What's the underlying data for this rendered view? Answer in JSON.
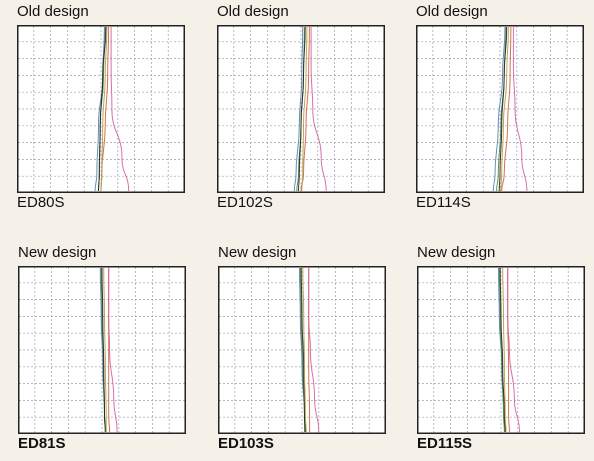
{
  "chart_data": [
    {
      "type": "line",
      "title": "Old design",
      "model": "ED80S",
      "series": [
        {
          "color": "#5a7fb0",
          "points": [
            [
              0.04,
              0
            ],
            [
              0.02,
              0.3
            ],
            [
              -0.03,
              0.6
            ],
            [
              -0.05,
              0.9
            ],
            [
              -0.07,
              1.0
            ]
          ]
        },
        {
          "color": "#4d8a4a",
          "points": [
            [
              0.05,
              0
            ],
            [
              0.03,
              0.3
            ],
            [
              -0.01,
              0.6
            ],
            [
              -0.02,
              0.9
            ],
            [
              -0.03,
              1.0
            ]
          ]
        },
        {
          "color": "#d06040",
          "points": [
            [
              0.09,
              0
            ],
            [
              0.08,
              0.3
            ],
            [
              0.05,
              0.6
            ],
            [
              0.01,
              0.9
            ],
            [
              0.0,
              1.0
            ]
          ]
        },
        {
          "color": "#d060a0",
          "points": [
            [
              0.12,
              0
            ],
            [
              0.12,
              0.25
            ],
            [
              0.13,
              0.5
            ],
            [
              0.25,
              0.8
            ],
            [
              0.33,
              1.0
            ]
          ]
        },
        {
          "color": "#222222",
          "points": [
            [
              0.06,
              0
            ],
            [
              0.02,
              0.3
            ],
            [
              -0.01,
              0.6
            ],
            [
              -0.02,
              0.9
            ],
            [
              -0.03,
              1.0
            ]
          ]
        },
        {
          "color": "#b0a040",
          "points": [
            [
              0.07,
              0
            ],
            [
              0.05,
              0.3
            ],
            [
              0.02,
              0.6
            ],
            [
              0.01,
              0.9
            ],
            [
              0.0,
              1.0
            ]
          ]
        }
      ]
    },
    {
      "type": "line",
      "title": "Old design",
      "model": "ED102S",
      "series": [
        {
          "color": "#5a7fb0",
          "points": [
            [
              0.02,
              0
            ],
            [
              0.01,
              0.3
            ],
            [
              -0.02,
              0.6
            ],
            [
              -0.06,
              0.9
            ],
            [
              -0.08,
              1.0
            ]
          ]
        },
        {
          "color": "#4d8a4a",
          "points": [
            [
              0.04,
              0
            ],
            [
              0.03,
              0.3
            ],
            [
              0.0,
              0.6
            ],
            [
              -0.03,
              0.9
            ],
            [
              -0.05,
              1.0
            ]
          ]
        },
        {
          "color": "#d06040",
          "points": [
            [
              0.1,
              0
            ],
            [
              0.09,
              0.3
            ],
            [
              0.06,
              0.6
            ],
            [
              0.03,
              0.9
            ],
            [
              0.0,
              1.0
            ]
          ]
        },
        {
          "color": "#d060a0",
          "points": [
            [
              0.12,
              0
            ],
            [
              0.12,
              0.25
            ],
            [
              0.14,
              0.5
            ],
            [
              0.24,
              0.8
            ],
            [
              0.3,
              1.0
            ]
          ]
        },
        {
          "color": "#222222",
          "points": [
            [
              0.05,
              0
            ],
            [
              0.03,
              0.3
            ],
            [
              0.0,
              0.6
            ],
            [
              -0.02,
              0.9
            ],
            [
              -0.03,
              1.0
            ]
          ]
        },
        {
          "color": "#b0a040",
          "points": [
            [
              0.07,
              0
            ],
            [
              0.06,
              0.3
            ],
            [
              0.03,
              0.6
            ],
            [
              0.02,
              0.9
            ],
            [
              0.01,
              1.0
            ]
          ]
        }
      ]
    },
    {
      "type": "line",
      "title": "Old design",
      "model": "ED114S",
      "series": [
        {
          "color": "#5a7fb0",
          "points": [
            [
              0.06,
              0
            ],
            [
              0.03,
              0.3
            ],
            [
              -0.02,
              0.6
            ],
            [
              -0.06,
              0.9
            ],
            [
              -0.08,
              1.0
            ]
          ]
        },
        {
          "color": "#4d8a4a",
          "points": [
            [
              0.07,
              0
            ],
            [
              0.05,
              0.3
            ],
            [
              0.01,
              0.6
            ],
            [
              -0.02,
              0.9
            ],
            [
              -0.04,
              1.0
            ]
          ]
        },
        {
          "color": "#d06040",
          "points": [
            [
              0.13,
              0
            ],
            [
              0.12,
              0.3
            ],
            [
              0.09,
              0.6
            ],
            [
              0.05,
              0.9
            ],
            [
              0.02,
              1.0
            ]
          ]
        },
        {
          "color": "#d060a0",
          "points": [
            [
              0.16,
              0
            ],
            [
              0.16,
              0.25
            ],
            [
              0.18,
              0.5
            ],
            [
              0.26,
              0.8
            ],
            [
              0.32,
              1.0
            ]
          ]
        },
        {
          "color": "#222222",
          "points": [
            [
              0.08,
              0
            ],
            [
              0.05,
              0.3
            ],
            [
              0.02,
              0.6
            ],
            [
              0.0,
              0.9
            ],
            [
              -0.01,
              1.0
            ]
          ]
        },
        {
          "color": "#b0a040",
          "points": [
            [
              0.1,
              0
            ],
            [
              0.08,
              0.3
            ],
            [
              0.04,
              0.6
            ],
            [
              0.02,
              0.9
            ],
            [
              0.01,
              1.0
            ]
          ]
        }
      ]
    },
    {
      "type": "line",
      "title": "New design",
      "model": "ED81S",
      "series": [
        {
          "color": "#5a7fb0",
          "points": [
            [
              -0.02,
              0
            ],
            [
              -0.01,
              0.3
            ],
            [
              0.01,
              0.6
            ],
            [
              0.03,
              0.9
            ],
            [
              0.04,
              1.0
            ]
          ]
        },
        {
          "color": "#4d8a4a",
          "points": [
            [
              -0.01,
              0
            ],
            [
              0.0,
              0.3
            ],
            [
              0.02,
              0.6
            ],
            [
              0.03,
              0.9
            ],
            [
              0.04,
              1.0
            ]
          ]
        },
        {
          "color": "#d06040",
          "points": [
            [
              0.08,
              0
            ],
            [
              0.08,
              0.3
            ],
            [
              0.08,
              0.6
            ],
            [
              0.08,
              0.9
            ],
            [
              0.09,
              1.0
            ]
          ]
        },
        {
          "color": "#d060a0",
          "points": [
            [
              0.08,
              0
            ],
            [
              0.08,
              0.3
            ],
            [
              0.09,
              0.5
            ],
            [
              0.14,
              0.8
            ],
            [
              0.18,
              1.0
            ]
          ]
        },
        {
          "color": "#222222",
          "points": [
            [
              0.0,
              0
            ],
            [
              0.01,
              0.3
            ],
            [
              0.02,
              0.6
            ],
            [
              0.03,
              0.9
            ],
            [
              0.04,
              1.0
            ]
          ]
        },
        {
          "color": "#b0a040",
          "points": [
            [
              0.02,
              0
            ],
            [
              0.03,
              0.3
            ],
            [
              0.04,
              0.6
            ],
            [
              0.05,
              0.9
            ],
            [
              0.05,
              1.0
            ]
          ]
        }
      ]
    },
    {
      "type": "line",
      "title": "New design",
      "model": "ED103S",
      "series": [
        {
          "color": "#5a7fb0",
          "points": [
            [
              -0.03,
              0
            ],
            [
              -0.02,
              0.3
            ],
            [
              0.0,
              0.6
            ],
            [
              0.03,
              0.9
            ],
            [
              0.04,
              1.0
            ]
          ]
        },
        {
          "color": "#4d8a4a",
          "points": [
            [
              -0.02,
              0
            ],
            [
              -0.01,
              0.3
            ],
            [
              0.01,
              0.6
            ],
            [
              0.03,
              0.9
            ],
            [
              0.03,
              1.0
            ]
          ]
        },
        {
          "color": "#d06040",
          "points": [
            [
              0.08,
              0
            ],
            [
              0.08,
              0.3
            ],
            [
              0.08,
              0.6
            ],
            [
              0.09,
              0.9
            ],
            [
              0.09,
              1.0
            ]
          ]
        },
        {
          "color": "#d060a0",
          "points": [
            [
              0.08,
              0
            ],
            [
              0.08,
              0.3
            ],
            [
              0.1,
              0.5
            ],
            [
              0.15,
              0.8
            ],
            [
              0.2,
              1.0
            ]
          ]
        },
        {
          "color": "#222222",
          "points": [
            [
              -0.01,
              0
            ],
            [
              0.0,
              0.3
            ],
            [
              0.02,
              0.6
            ],
            [
              0.03,
              0.9
            ],
            [
              0.04,
              1.0
            ]
          ]
        },
        {
          "color": "#b0a040",
          "points": [
            [
              0.01,
              0
            ],
            [
              0.02,
              0.3
            ],
            [
              0.03,
              0.6
            ],
            [
              0.04,
              0.9
            ],
            [
              0.05,
              1.0
            ]
          ]
        }
      ]
    },
    {
      "type": "line",
      "title": "New design",
      "model": "ED115S",
      "series": [
        {
          "color": "#5a7fb0",
          "points": [
            [
              -0.03,
              0
            ],
            [
              -0.02,
              0.3
            ],
            [
              0.01,
              0.6
            ],
            [
              0.04,
              0.9
            ],
            [
              0.06,
              1.0
            ]
          ]
        },
        {
          "color": "#4d8a4a",
          "points": [
            [
              -0.02,
              0
            ],
            [
              -0.01,
              0.3
            ],
            [
              0.01,
              0.6
            ],
            [
              0.03,
              0.9
            ],
            [
              0.04,
              1.0
            ]
          ]
        },
        {
          "color": "#d06040",
          "points": [
            [
              0.08,
              0
            ],
            [
              0.08,
              0.3
            ],
            [
              0.09,
              0.6
            ],
            [
              0.09,
              0.9
            ],
            [
              0.1,
              1.0
            ]
          ]
        },
        {
          "color": "#d060a0",
          "points": [
            [
              0.08,
              0
            ],
            [
              0.08,
              0.3
            ],
            [
              0.1,
              0.5
            ],
            [
              0.16,
              0.8
            ],
            [
              0.22,
              1.0
            ]
          ]
        },
        {
          "color": "#222222",
          "points": [
            [
              -0.01,
              0
            ],
            [
              0.0,
              0.3
            ],
            [
              0.02,
              0.6
            ],
            [
              0.04,
              0.9
            ],
            [
              0.05,
              1.0
            ]
          ]
        },
        {
          "color": "#b0a040",
          "points": [
            [
              0.02,
              0
            ],
            [
              0.03,
              0.3
            ],
            [
              0.04,
              0.6
            ],
            [
              0.05,
              0.9
            ],
            [
              0.06,
              1.0
            ]
          ]
        }
      ]
    }
  ]
}
